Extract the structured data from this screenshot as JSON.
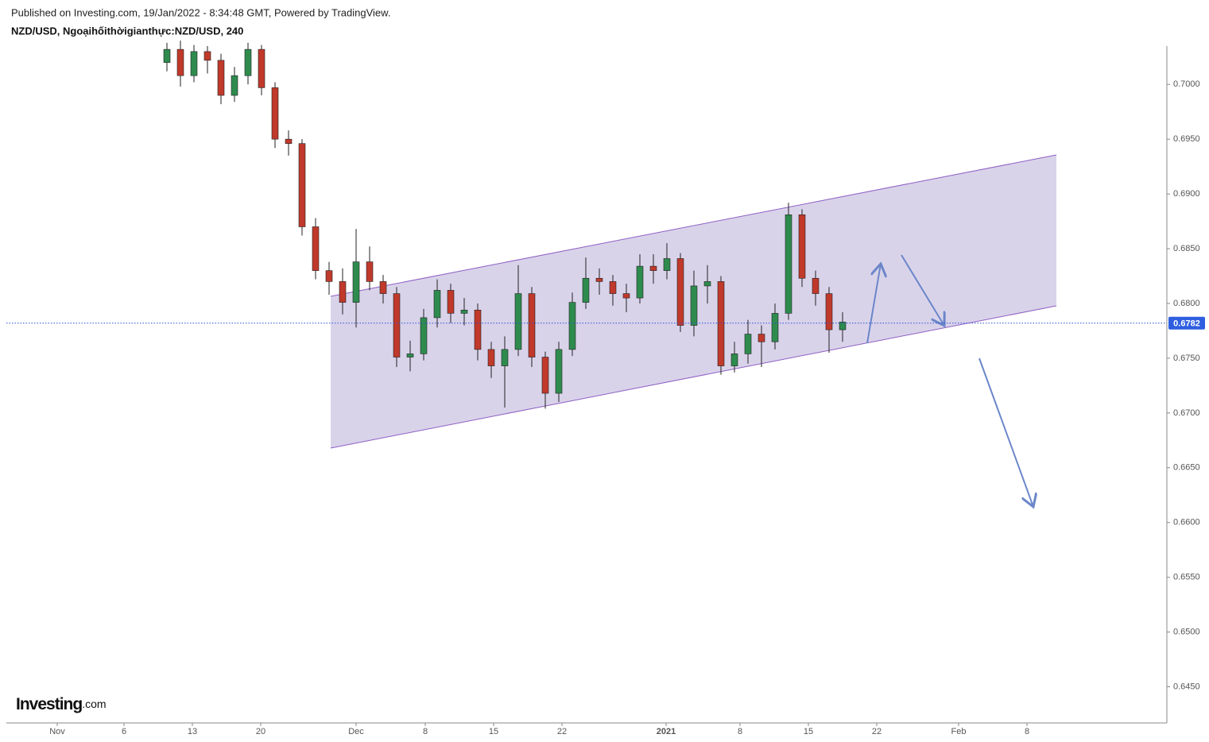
{
  "header": {
    "published": "Published on Investing.com, 19/Jan/2022 - 8:34:48 GMT, Powered by TradingView.",
    "symbol": "NZD/USD, Ngoạihốithờigianthực:NZD/USD, 240"
  },
  "logo": {
    "brand": "Investing",
    "suffix": ".com"
  },
  "chart_data": {
    "type": "candlestick",
    "x": [
      210,
      227,
      244,
      261,
      278,
      295,
      312,
      329,
      346,
      363,
      380,
      397,
      414,
      431,
      448,
      465,
      482,
      499,
      516,
      533,
      550,
      567,
      584,
      601,
      618,
      635,
      652,
      669,
      686,
      703,
      720,
      737,
      754,
      771,
      788,
      805,
      822,
      839,
      856,
      873,
      890,
      907,
      924,
      941,
      958,
      975,
      992,
      1009,
      1026,
      1043,
      1060
    ],
    "open": [
      0.702,
      0.7032,
      0.7008,
      0.703,
      0.7022,
      0.699,
      0.7008,
      0.7032,
      0.6997,
      0.695,
      0.6946,
      0.687,
      0.683,
      0.682,
      0.6801,
      0.6838,
      0.682,
      0.6809,
      0.6751,
      0.6754,
      0.6787,
      0.6812,
      0.6791,
      0.6794,
      0.6758,
      0.6743,
      0.6758,
      0.6809,
      0.6751,
      0.6718,
      0.6758,
      0.6801,
      0.6823,
      0.682,
      0.6809,
      0.6805,
      0.6834,
      0.683,
      0.6841,
      0.678,
      0.6816,
      0.682,
      0.6743,
      0.6754,
      0.6772,
      0.6765,
      0.6791,
      0.6881,
      0.6823,
      0.6809,
      0.6776
    ],
    "high": [
      0.7038,
      0.704,
      0.7036,
      0.7035,
      0.7028,
      0.7016,
      0.7038,
      0.7036,
      0.7002,
      0.6958,
      0.695,
      0.6878,
      0.6838,
      0.6832,
      0.6868,
      0.6852,
      0.6826,
      0.6815,
      0.6766,
      0.6795,
      0.6822,
      0.6818,
      0.6805,
      0.68,
      0.6765,
      0.677,
      0.6835,
      0.6815,
      0.6756,
      0.6765,
      0.681,
      0.6842,
      0.6832,
      0.6826,
      0.6818,
      0.6845,
      0.6845,
      0.6855,
      0.6846,
      0.683,
      0.6835,
      0.6825,
      0.6765,
      0.6785,
      0.678,
      0.68,
      0.6892,
      0.6886,
      0.683,
      0.6815,
      0.6792
    ],
    "low": [
      0.7012,
      0.6998,
      0.7002,
      0.701,
      0.6982,
      0.6984,
      0.7,
      0.699,
      0.6942,
      0.6935,
      0.6862,
      0.6822,
      0.6808,
      0.679,
      0.6778,
      0.6812,
      0.68,
      0.6742,
      0.6738,
      0.6748,
      0.6778,
      0.6782,
      0.678,
      0.6748,
      0.6732,
      0.6705,
      0.6752,
      0.6742,
      0.6704,
      0.671,
      0.6752,
      0.6795,
      0.6808,
      0.6798,
      0.6792,
      0.68,
      0.6818,
      0.6822,
      0.6774,
      0.677,
      0.68,
      0.6735,
      0.6737,
      0.6745,
      0.6742,
      0.6758,
      0.6785,
      0.6815,
      0.6798,
      0.6755,
      0.6765
    ],
    "close": [
      0.7032,
      0.7008,
      0.703,
      0.7022,
      0.699,
      0.7008,
      0.7032,
      0.6997,
      0.695,
      0.6946,
      0.687,
      0.683,
      0.682,
      0.6801,
      0.6838,
      0.682,
      0.6809,
      0.6751,
      0.6754,
      0.6787,
      0.6812,
      0.6791,
      0.6794,
      0.6758,
      0.6743,
      0.6758,
      0.6809,
      0.6751,
      0.6718,
      0.6758,
      0.6801,
      0.6823,
      0.682,
      0.6809,
      0.6805,
      0.6834,
      0.683,
      0.6841,
      0.678,
      0.6816,
      0.682,
      0.6743,
      0.6754,
      0.6772,
      0.6765,
      0.6791,
      0.6881,
      0.6823,
      0.6809,
      0.6776,
      0.6783
    ],
    "up_color": "#2e8b4e",
    "down_color": "#c0392b",
    "last_price": 0.6782,
    "xlim": [
      8,
      1468
    ],
    "xticks": [
      {
        "value": 72,
        "label": "Nov"
      },
      {
        "value": 156,
        "label": "6"
      },
      {
        "value": 242,
        "label": "13"
      },
      {
        "value": 328,
        "label": "20"
      },
      {
        "value": 448,
        "label": "Dec"
      },
      {
        "value": 535,
        "label": "8"
      },
      {
        "value": 621,
        "label": "15"
      },
      {
        "value": 707,
        "label": "22"
      },
      {
        "value": 838,
        "label": "2021"
      },
      {
        "value": 931,
        "label": "8"
      },
      {
        "value": 1017,
        "label": "15"
      },
      {
        "value": 1103,
        "label": "22"
      },
      {
        "value": 1206,
        "label": "Feb"
      },
      {
        "value": 1292,
        "label": "8"
      }
    ],
    "ylim": [
      0.6417,
      0.7035
    ],
    "yticks": [
      {
        "value": 0.7,
        "label": "0.7000"
      },
      {
        "value": 0.695,
        "label": "0.6950"
      },
      {
        "value": 0.69,
        "label": "0.6900"
      },
      {
        "value": 0.685,
        "label": "0.6850"
      },
      {
        "value": 0.68,
        "label": "0.6800"
      },
      {
        "value": 0.675,
        "label": "0.6750"
      },
      {
        "value": 0.67,
        "label": "0.6700"
      },
      {
        "value": 0.665,
        "label": "0.6650"
      },
      {
        "value": 0.66,
        "label": "0.6600"
      },
      {
        "value": 0.655,
        "label": "0.6550"
      },
      {
        "value": 0.65,
        "label": "0.6500"
      },
      {
        "value": 0.645,
        "label": "0.6450"
      }
    ]
  }
}
